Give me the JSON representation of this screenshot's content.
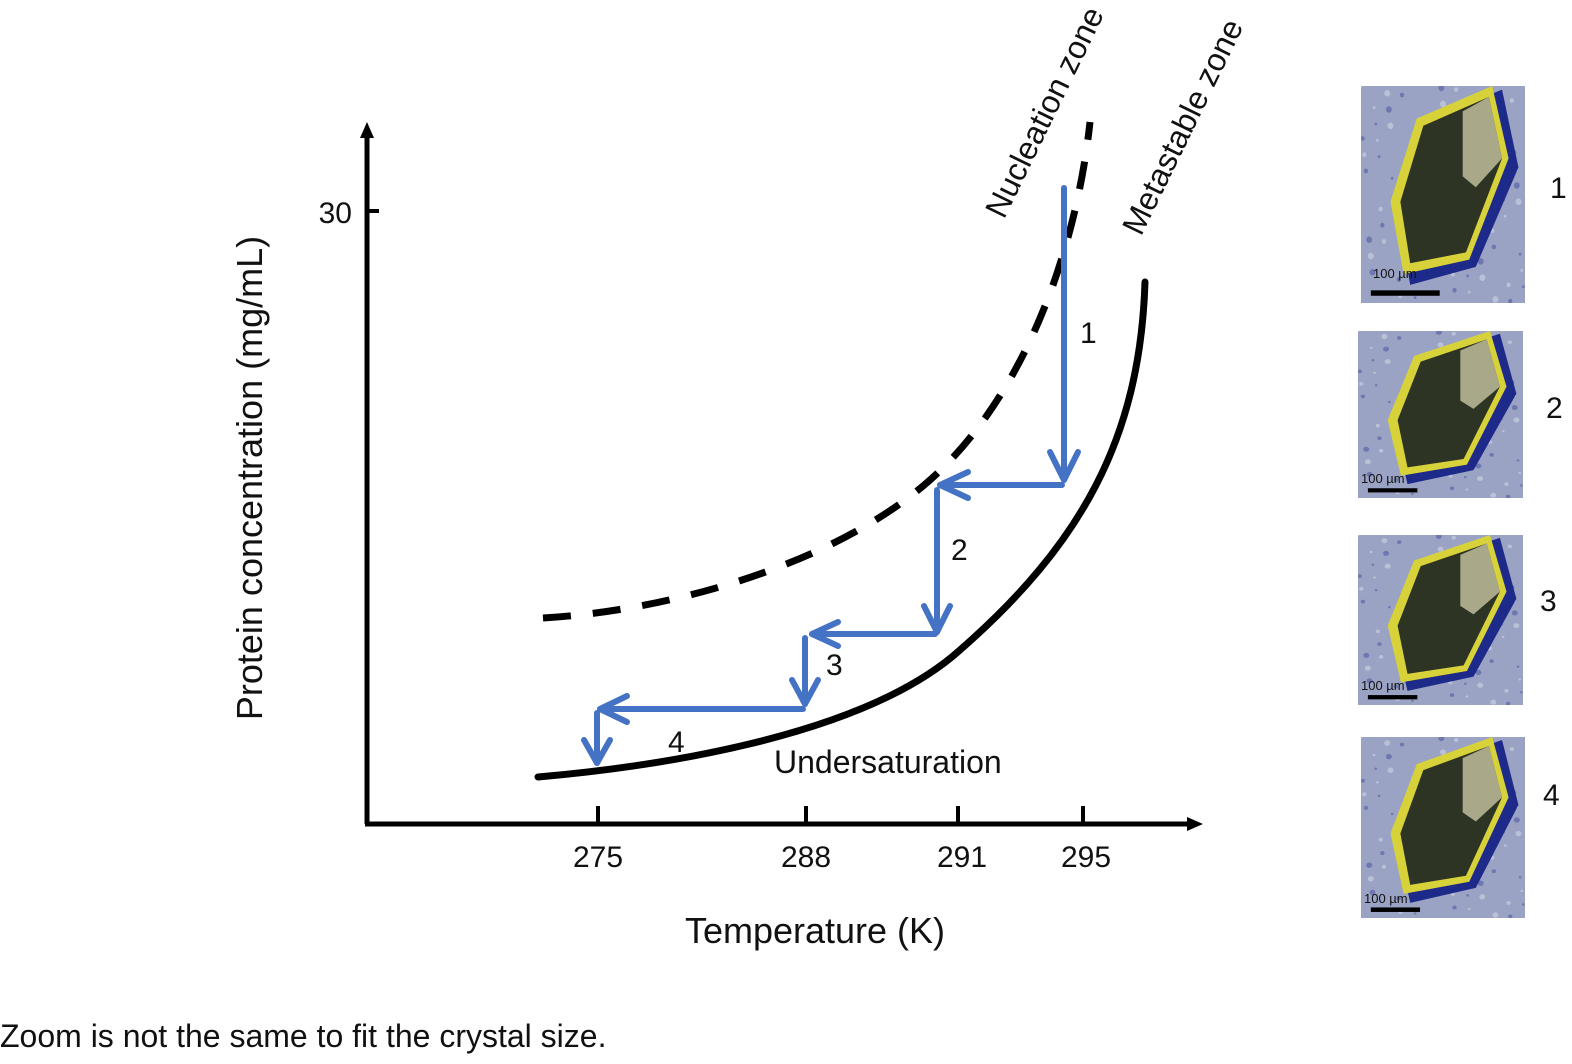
{
  "axes": {
    "y_label": "Protein concentration (mg/mL)",
    "x_label": "Temperature (K)",
    "y_tick": "30",
    "x_ticks": [
      "275",
      "288",
      "291",
      "295"
    ]
  },
  "zones": {
    "nucleation": "Nucleation zone",
    "metastable": "Metastable zone",
    "undersaturation": "Undersaturation"
  },
  "steps": [
    "1",
    "2",
    "3",
    "4"
  ],
  "photos": [
    {
      "step": "1",
      "scale": "100 µm"
    },
    {
      "step": "2",
      "scale": "100 µm"
    },
    {
      "step": "3",
      "scale": "100 µm"
    },
    {
      "step": "4",
      "scale": "100 µm"
    }
  ],
  "caption": "Zoom is not the same to fit the crystal size.",
  "colors": {
    "arrow": "#4472c4",
    "curve": "#000000",
    "photo_bg": "#9aa3c4",
    "crystal": "#2e3424",
    "crystal_halo": "#d8d23a",
    "crystal_shadow": "#1e2a8a",
    "crystal_face": "#a9a98a"
  }
}
